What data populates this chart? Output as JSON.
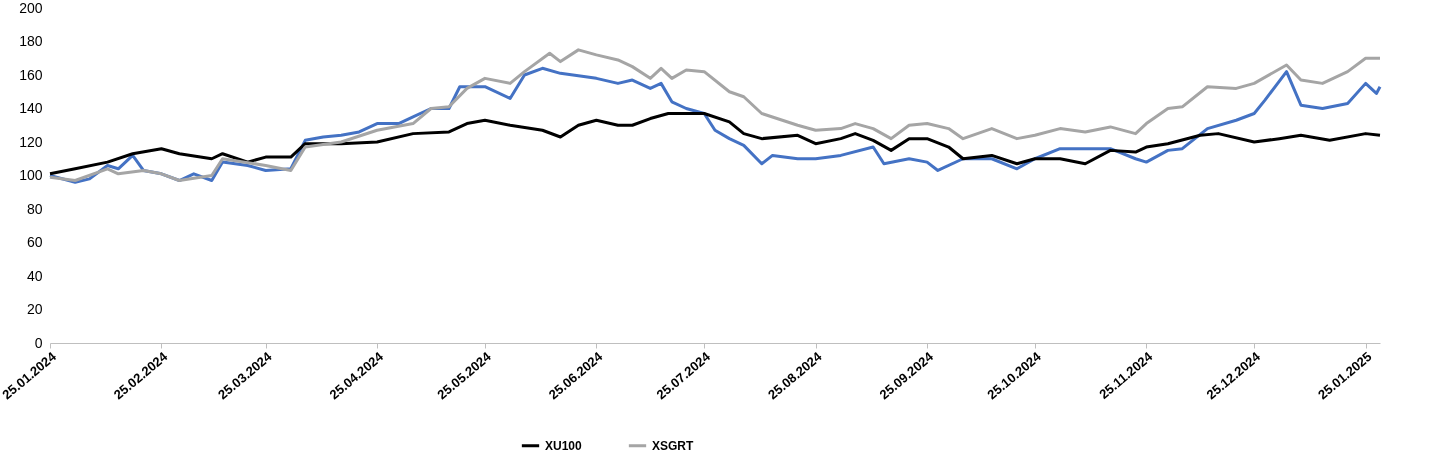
{
  "chart_data": {
    "type": "line",
    "legend": "bottom",
    "xlim": [
      "2024-01-25",
      "2025-01-29"
    ],
    "xticks": [
      {
        "value": "2024-01-25",
        "label": "25.01.2024"
      },
      {
        "value": "2024-02-25",
        "label": "25.02.2024"
      },
      {
        "value": "2024-03-25",
        "label": "25.03.2024"
      },
      {
        "value": "2024-04-25",
        "label": "25.04.2024"
      },
      {
        "value": "2024-05-25",
        "label": "25.05.2024"
      },
      {
        "value": "2024-06-25",
        "label": "25.06.2024"
      },
      {
        "value": "2024-07-25",
        "label": "25.07.2024"
      },
      {
        "value": "2024-08-25",
        "label": "25.08.2024"
      },
      {
        "value": "2024-09-25",
        "label": "25.09.2024"
      },
      {
        "value": "2024-10-25",
        "label": "25.10.2024"
      },
      {
        "value": "2024-11-25",
        "label": "25.11.2024"
      },
      {
        "value": "2024-12-25",
        "label": "25.12.2024"
      },
      {
        "value": "2025-01-25",
        "label": "25.01.2025"
      }
    ],
    "ylim": [
      0,
      200
    ],
    "yticks": [
      0,
      20,
      40,
      60,
      80,
      100,
      120,
      140,
      160,
      180,
      200
    ],
    "series": [
      {
        "color": "#4472c4",
        "x": [
          "2024-01-25",
          "2024-02-01",
          "2024-02-05",
          "2024-02-10",
          "2024-02-13",
          "2024-02-17",
          "2024-02-20",
          "2024-02-25",
          "2024-03-01",
          "2024-03-05",
          "2024-03-10",
          "2024-03-13",
          "2024-03-20",
          "2024-03-25",
          "2024-04-01",
          "2024-04-05",
          "2024-04-10",
          "2024-04-15",
          "2024-04-20",
          "2024-04-25",
          "2024-05-01",
          "2024-05-05",
          "2024-05-10",
          "2024-05-15",
          "2024-05-18",
          "2024-05-25",
          "2024-06-01",
          "2024-06-05",
          "2024-06-10",
          "2024-06-15",
          "2024-06-25",
          "2024-07-01",
          "2024-07-05",
          "2024-07-10",
          "2024-07-13",
          "2024-07-16",
          "2024-07-20",
          "2024-07-25",
          "2024-07-28",
          "2024-08-01",
          "2024-08-05",
          "2024-08-10",
          "2024-08-13",
          "2024-08-20",
          "2024-08-25",
          "2024-09-01",
          "2024-09-10",
          "2024-09-13",
          "2024-09-20",
          "2024-09-25",
          "2024-09-28",
          "2024-10-05",
          "2024-10-13",
          "2024-10-20",
          "2024-10-25",
          "2024-11-01",
          "2024-11-08",
          "2024-11-15",
          "2024-11-22",
          "2024-11-25",
          "2024-12-01",
          "2024-12-05",
          "2024-12-12",
          "2024-12-20",
          "2024-12-25",
          "2024-12-28",
          "2025-01-03",
          "2025-01-07",
          "2025-01-13",
          "2025-01-20",
          "2025-01-25",
          "2025-01-28",
          "2025-01-29"
        ],
        "values": [
          100,
          96,
          98,
          106,
          104,
          112,
          103,
          101,
          97,
          101,
          97,
          108,
          106,
          103,
          104,
          121,
          123,
          124,
          126,
          131,
          131,
          135,
          140,
          140,
          153,
          153,
          146,
          160,
          164,
          161,
          158,
          155,
          157,
          152,
          155,
          144,
          140,
          137,
          127,
          122,
          118,
          107,
          112,
          110,
          110,
          112,
          117,
          107,
          110,
          108,
          103,
          110,
          110,
          104,
          110,
          116,
          116,
          116,
          110,
          108,
          115,
          116,
          128,
          133,
          137,
          145,
          162,
          142,
          140,
          143,
          155,
          149,
          153
        ]
      },
      {
        "name": "XU100",
        "color": "#000000",
        "x": [
          "2024-01-25",
          "2024-02-01",
          "2024-02-10",
          "2024-02-17",
          "2024-02-25",
          "2024-03-01",
          "2024-03-10",
          "2024-03-13",
          "2024-03-20",
          "2024-03-25",
          "2024-04-01",
          "2024-04-05",
          "2024-04-15",
          "2024-04-25",
          "2024-05-05",
          "2024-05-15",
          "2024-05-20",
          "2024-05-25",
          "2024-06-01",
          "2024-06-10",
          "2024-06-15",
          "2024-06-20",
          "2024-06-25",
          "2024-07-01",
          "2024-07-05",
          "2024-07-10",
          "2024-07-15",
          "2024-07-25",
          "2024-08-01",
          "2024-08-05",
          "2024-08-10",
          "2024-08-20",
          "2024-08-25",
          "2024-09-01",
          "2024-09-05",
          "2024-09-10",
          "2024-09-15",
          "2024-09-20",
          "2024-09-25",
          "2024-10-01",
          "2024-10-05",
          "2024-10-13",
          "2024-10-20",
          "2024-10-25",
          "2024-11-01",
          "2024-11-08",
          "2024-11-15",
          "2024-11-22",
          "2024-11-25",
          "2024-12-01",
          "2024-12-10",
          "2024-12-15",
          "2024-12-25",
          "2025-01-01",
          "2025-01-07",
          "2025-01-15",
          "2025-01-25",
          "2025-01-29"
        ],
        "values": [
          101,
          104,
          108,
          113,
          116,
          113,
          110,
          113,
          108,
          111,
          111,
          119,
          119,
          120,
          125,
          126,
          131,
          133,
          130,
          127,
          123,
          130,
          133,
          130,
          130,
          134,
          137,
          137,
          132,
          125,
          122,
          124,
          119,
          122,
          125,
          121,
          115,
          122,
          122,
          117,
          110,
          112,
          107,
          110,
          110,
          107,
          115,
          114,
          117,
          119,
          124,
          125,
          120,
          122,
          124,
          121,
          125,
          124
        ]
      },
      {
        "name": "XSGRT",
        "color": "#a5a5a5",
        "x": [
          "2024-01-25",
          "2024-02-01",
          "2024-02-10",
          "2024-02-13",
          "2024-02-20",
          "2024-02-25",
          "2024-03-01",
          "2024-03-10",
          "2024-03-13",
          "2024-03-25",
          "2024-04-01",
          "2024-04-05",
          "2024-04-15",
          "2024-04-25",
          "2024-05-05",
          "2024-05-10",
          "2024-05-15",
          "2024-05-20",
          "2024-05-25",
          "2024-06-01",
          "2024-06-05",
          "2024-06-12",
          "2024-06-15",
          "2024-06-20",
          "2024-06-25",
          "2024-07-01",
          "2024-07-05",
          "2024-07-10",
          "2024-07-13",
          "2024-07-16",
          "2024-07-20",
          "2024-07-25",
          "2024-08-01",
          "2024-08-05",
          "2024-08-10",
          "2024-08-20",
          "2024-08-25",
          "2024-09-01",
          "2024-09-05",
          "2024-09-10",
          "2024-09-15",
          "2024-09-20",
          "2024-09-25",
          "2024-10-01",
          "2024-10-05",
          "2024-10-13",
          "2024-10-20",
          "2024-10-25",
          "2024-11-01",
          "2024-11-08",
          "2024-11-15",
          "2024-11-22",
          "2024-11-25",
          "2024-12-01",
          "2024-12-05",
          "2024-12-12",
          "2024-12-20",
          "2024-12-25",
          "2025-01-03",
          "2025-01-07",
          "2025-01-13",
          "2025-01-20",
          "2025-01-25",
          "2025-01-29"
        ],
        "values": [
          99,
          97,
          104,
          101,
          103,
          101,
          97,
          100,
          110,
          106,
          103,
          117,
          120,
          127,
          131,
          140,
          141,
          152,
          158,
          155,
          162,
          173,
          168,
          175,
          172,
          169,
          165,
          158,
          164,
          158,
          163,
          162,
          150,
          147,
          137,
          130,
          127,
          128,
          131,
          128,
          122,
          130,
          131,
          128,
          122,
          128,
          122,
          124,
          128,
          126,
          129,
          125,
          131,
          140,
          141,
          153,
          152,
          155,
          166,
          157,
          155,
          162,
          170,
          170
        ]
      }
    ]
  }
}
